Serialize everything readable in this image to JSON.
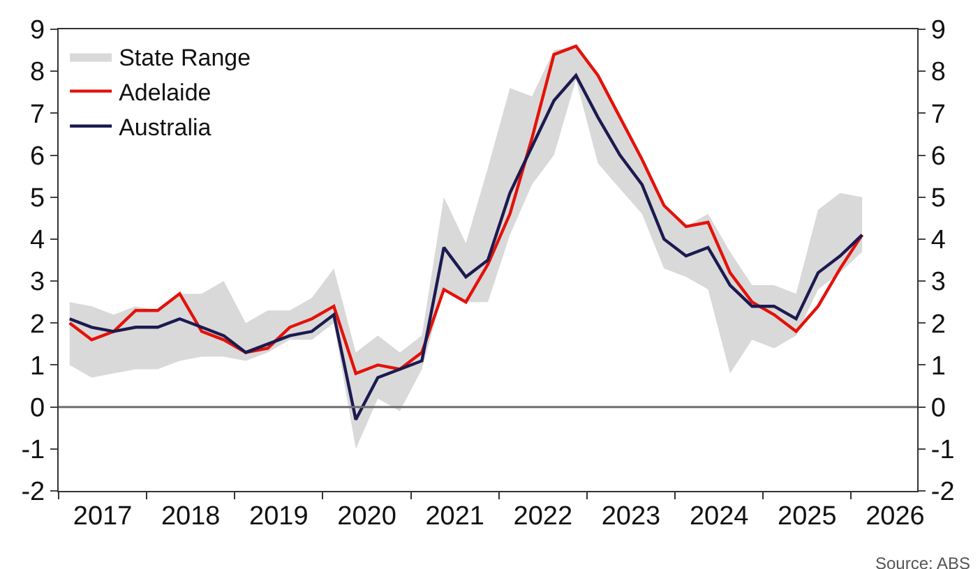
{
  "chart_data": {
    "type": "line",
    "x": [
      2017.125,
      2017.375,
      2017.625,
      2017.875,
      2018.125,
      2018.375,
      2018.625,
      2018.875,
      2019.125,
      2019.375,
      2019.625,
      2019.875,
      2020.125,
      2020.375,
      2020.625,
      2020.875,
      2021.125,
      2021.375,
      2021.625,
      2021.875,
      2022.125,
      2022.375,
      2022.625,
      2022.875,
      2023.125,
      2023.375,
      2023.625,
      2023.875,
      2024.125,
      2024.375,
      2024.625,
      2024.875,
      2025.125,
      2025.375,
      2025.625,
      2025.875,
      2026.125
    ],
    "series": [
      {
        "name": "State Range",
        "type": "line",
        "color": "#d9d9d9",
        "values": [
          null,
          null,
          null,
          null,
          null,
          null,
          null,
          null,
          null,
          null,
          null,
          null,
          null,
          null,
          null,
          null,
          null,
          null,
          null,
          null,
          null,
          null,
          null,
          null,
          null,
          null,
          null,
          null,
          null,
          null,
          null,
          null,
          null,
          null,
          null,
          null,
          null
        ],
        "lower": [
          1.0,
          0.7,
          0.8,
          0.9,
          0.9,
          1.1,
          1.2,
          1.2,
          1.1,
          1.3,
          1.6,
          1.6,
          2.0,
          -1.0,
          0.2,
          -0.1,
          0.9,
          2.8,
          2.5,
          2.5,
          4.1,
          5.3,
          6.0,
          7.8,
          5.8,
          5.2,
          4.6,
          3.3,
          3.1,
          2.8,
          0.8,
          1.6,
          1.4,
          1.7,
          2.8,
          3.2,
          3.7
        ],
        "upper": [
          2.5,
          2.4,
          2.2,
          2.4,
          2.3,
          2.7,
          2.7,
          3.0,
          2.0,
          2.3,
          2.3,
          2.6,
          3.3,
          1.3,
          1.7,
          1.3,
          1.7,
          5.0,
          3.9,
          5.7,
          7.6,
          7.4,
          8.5,
          8.6,
          7.9,
          6.9,
          5.9,
          4.8,
          4.3,
          4.6,
          3.7,
          2.9,
          2.9,
          2.7,
          4.7,
          5.1,
          5.0
        ]
      },
      {
        "name": "Adelaide",
        "color": "#e3120b",
        "values": [
          2.0,
          1.6,
          1.8,
          2.3,
          2.3,
          2.7,
          1.8,
          1.6,
          1.3,
          1.4,
          1.9,
          2.1,
          2.4,
          0.8,
          1.0,
          0.9,
          1.3,
          2.8,
          2.5,
          3.4,
          4.6,
          6.4,
          8.4,
          8.6,
          7.9,
          6.9,
          5.9,
          4.8,
          4.3,
          4.4,
          3.2,
          2.5,
          2.2,
          1.8,
          2.4,
          3.3,
          4.1
        ]
      },
      {
        "name": "Australia",
        "color": "#1c1a4f",
        "values": [
          2.1,
          1.9,
          1.8,
          1.9,
          1.9,
          2.1,
          1.9,
          1.7,
          1.3,
          1.5,
          1.7,
          1.8,
          2.2,
          -0.3,
          0.7,
          0.9,
          1.1,
          3.8,
          3.1,
          3.5,
          5.1,
          6.2,
          7.3,
          7.9,
          6.9,
          6.0,
          5.3,
          4.0,
          3.6,
          3.8,
          2.9,
          2.4,
          2.4,
          2.1,
          3.2,
          3.6,
          4.1
        ]
      }
    ],
    "xlim": [
      2017,
      2026.75
    ],
    "xticks": [
      {
        "value": 2017,
        "label": null
      },
      {
        "value": 2017.5,
        "label": "2017"
      },
      {
        "value": 2018,
        "label": null
      },
      {
        "value": 2018.5,
        "label": "2018"
      },
      {
        "value": 2019,
        "label": null
      },
      {
        "value": 2019.5,
        "label": "2019"
      },
      {
        "value": 2020,
        "label": null
      },
      {
        "value": 2020.5,
        "label": "2020"
      },
      {
        "value": 2021,
        "label": null
      },
      {
        "value": 2021.5,
        "label": "2021"
      },
      {
        "value": 2022,
        "label": null
      },
      {
        "value": 2022.5,
        "label": "2022"
      },
      {
        "value": 2023,
        "label": null
      },
      {
        "value": 2023.5,
        "label": "2023"
      },
      {
        "value": 2024,
        "label": null
      },
      {
        "value": 2024.5,
        "label": "2024"
      },
      {
        "value": 2025,
        "label": null
      },
      {
        "value": 2025.5,
        "label": "2025"
      },
      {
        "value": 2026,
        "label": null
      },
      {
        "value": 2026.5,
        "label": "2026"
      }
    ],
    "ylim": [
      -2,
      9
    ],
    "yticks": [
      -2,
      -1,
      0,
      1,
      2,
      3,
      4,
      5,
      6,
      7,
      8,
      9
    ],
    "y2lim": [
      -2,
      9
    ],
    "y2ticks": [
      -2,
      -1,
      0,
      1,
      2,
      3,
      4,
      5,
      6,
      7,
      8,
      9
    ],
    "ref_lines": [
      {
        "axis": "y",
        "value": 0,
        "color": "#6e6e6e"
      }
    ],
    "grid": false,
    "legend": "top left",
    "marker": "none",
    "line_style": "solid",
    "annotations": [
      "Source: ABS"
    ]
  }
}
